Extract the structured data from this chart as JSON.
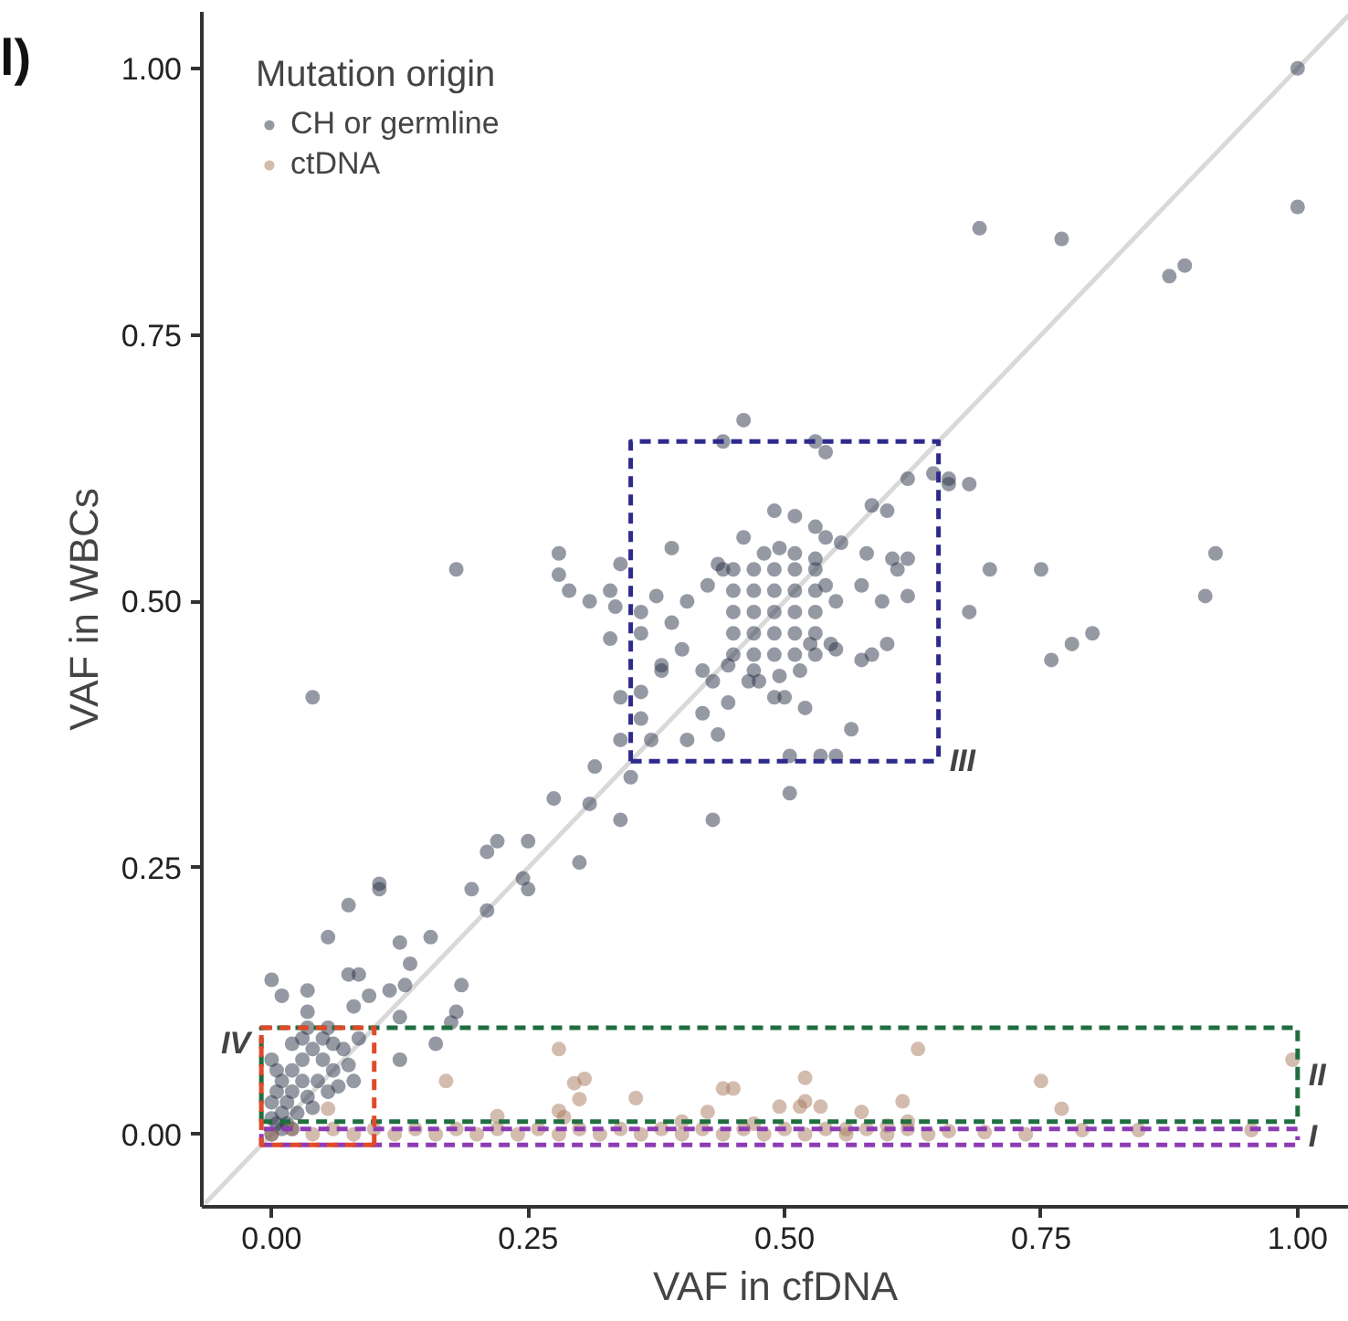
{
  "chart_data": {
    "type": "scatter",
    "xlabel": "VAF in cfDNA",
    "ylabel": "VAF in WBCs",
    "legend_title": "Mutation origin",
    "legend": "top left",
    "grid": false,
    "marker": "circle",
    "xlim": [
      -0.068,
      1.05
    ],
    "ylim": [
      -0.068,
      1.053
    ],
    "xticks": [
      {
        "value": 0,
        "label": "0.00"
      },
      {
        "value": 0.25,
        "label": "0.25"
      },
      {
        "value": 0.5,
        "label": "0.50"
      },
      {
        "value": 0.75,
        "label": "0.75"
      },
      {
        "value": 1,
        "label": "1.00"
      }
    ],
    "yticks": [
      {
        "value": 0,
        "label": "0.00"
      },
      {
        "value": 0.25,
        "label": "0.25"
      },
      {
        "value": 0.5,
        "label": "0.50"
      },
      {
        "value": 0.75,
        "label": "0.75"
      },
      {
        "value": 1,
        "label": "1.00"
      }
    ],
    "annotations": [
      "l)"
    ],
    "series": [
      {
        "type": "line",
        "marker": "none",
        "color": "#d9d9d9",
        "line_style": "solid",
        "x": [
          -0.065,
          1.05
        ],
        "values": [
          -0.065,
          1.05
        ]
      },
      {
        "name": "CH or germline",
        "color": "#2b3447",
        "x": [
          1.0,
          1.0,
          0.69,
          0.77,
          0.875,
          0.89,
          0.66,
          0.68,
          0.7,
          0.75,
          0.76,
          0.78,
          0.8,
          0.91,
          0.92,
          0.46,
          0.44,
          0.53,
          0.54,
          0.62,
          0.645,
          0.66,
          0.585,
          0.6,
          0.49,
          0.51,
          0.53,
          0.54,
          0.46,
          0.39,
          0.28,
          0.28,
          0.29,
          0.31,
          0.33,
          0.34,
          0.335,
          0.18,
          0.04,
          0.36,
          0.36,
          0.33,
          0.555,
          0.58,
          0.605,
          0.62,
          0.61,
          0.62,
          0.68,
          0.595,
          0.575,
          0.6,
          0.585,
          0.575,
          0.55,
          0.565,
          0.52,
          0.49,
          0.5,
          0.505,
          0.535,
          0.55,
          0.505,
          0.43,
          0.34,
          0.275,
          0.31,
          0.315,
          0.35,
          0.34,
          0.37,
          0.405,
          0.435,
          0.42,
          0.445,
          0.36,
          0.36,
          0.34,
          0.38,
          0.38,
          0.4,
          0.42,
          0.43,
          0.445,
          0.465,
          0.475,
          0.375,
          0.39,
          0.405,
          0.425,
          0.435,
          0.44,
          0.48,
          0.495,
          0.51,
          0.53,
          0.54,
          0.55,
          0.545,
          0.525,
          0.515,
          0.495,
          0.47,
          0.45,
          0.47,
          0.49,
          0.51,
          0.53,
          0.45,
          0.47,
          0.49,
          0.51,
          0.53,
          0.45,
          0.47,
          0.49,
          0.51,
          0.53,
          0.45,
          0.47,
          0.49,
          0.51,
          0.53,
          0.45,
          0.47,
          0.49,
          0.51,
          0.53,
          0.0,
          0.01,
          0.035,
          0.035,
          0.055,
          0.075,
          0.075,
          0.085,
          0.08,
          0.095,
          0.105,
          0.105,
          0.125,
          0.135,
          0.115,
          0.13,
          0.155,
          0.185,
          0.18,
          0.175,
          0.195,
          0.21,
          0.21,
          0.22,
          0.25,
          0.245,
          0.25,
          0.3,
          0.125,
          0.125,
          0.16,
          0.0,
          0.005,
          0.01,
          0.015,
          0.02,
          0.01,
          0.005,
          0.0,
          0.02,
          0.03,
          0.03,
          0.04,
          0.05,
          0.06,
          0.07,
          0.075,
          0.08,
          0.06,
          0.05,
          0.045,
          0.035,
          0.025,
          0.015,
          0.0,
          0.0,
          0.03,
          0.02,
          0.065,
          0.055,
          0.04,
          0.01,
          0.02,
          0.005,
          0.035,
          0.055,
          0.085
        ],
        "values": [
          1.0,
          0.87,
          0.85,
          0.84,
          0.805,
          0.815,
          0.61,
          0.61,
          0.53,
          0.53,
          0.445,
          0.46,
          0.47,
          0.505,
          0.545,
          0.67,
          0.65,
          0.65,
          0.64,
          0.615,
          0.62,
          0.615,
          0.59,
          0.585,
          0.585,
          0.58,
          0.57,
          0.56,
          0.56,
          0.55,
          0.545,
          0.525,
          0.51,
          0.5,
          0.51,
          0.535,
          0.495,
          0.53,
          0.41,
          0.49,
          0.47,
          0.465,
          0.555,
          0.545,
          0.54,
          0.54,
          0.53,
          0.505,
          0.49,
          0.5,
          0.515,
          0.46,
          0.45,
          0.445,
          0.455,
          0.38,
          0.4,
          0.41,
          0.41,
          0.355,
          0.355,
          0.355,
          0.32,
          0.295,
          0.295,
          0.315,
          0.31,
          0.345,
          0.335,
          0.37,
          0.37,
          0.37,
          0.375,
          0.395,
          0.405,
          0.39,
          0.415,
          0.41,
          0.44,
          0.435,
          0.455,
          0.435,
          0.425,
          0.44,
          0.425,
          0.425,
          0.505,
          0.48,
          0.5,
          0.515,
          0.535,
          0.53,
          0.545,
          0.55,
          0.545,
          0.54,
          0.515,
          0.5,
          0.46,
          0.46,
          0.435,
          0.43,
          0.435,
          0.45,
          0.45,
          0.45,
          0.45,
          0.45,
          0.47,
          0.47,
          0.47,
          0.47,
          0.47,
          0.49,
          0.49,
          0.49,
          0.49,
          0.49,
          0.51,
          0.51,
          0.51,
          0.51,
          0.51,
          0.53,
          0.53,
          0.53,
          0.53,
          0.53,
          0.145,
          0.13,
          0.135,
          0.115,
          0.185,
          0.215,
          0.15,
          0.15,
          0.12,
          0.13,
          0.235,
          0.23,
          0.18,
          0.16,
          0.135,
          0.14,
          0.185,
          0.14,
          0.115,
          0.105,
          0.23,
          0.21,
          0.265,
          0.275,
          0.275,
          0.24,
          0.23,
          0.255,
          0.11,
          0.07,
          0.085,
          0.0,
          0.01,
          0.02,
          0.03,
          0.04,
          0.05,
          0.06,
          0.07,
          0.06,
          0.05,
          0.07,
          0.08,
          0.09,
          0.085,
          0.08,
          0.065,
          0.05,
          0.06,
          0.07,
          0.05,
          0.035,
          0.02,
          0.01,
          0.03,
          0.015,
          0.09,
          0.085,
          0.045,
          0.04,
          0.025,
          0.005,
          0.005,
          0.04,
          0.1,
          0.1,
          0.09
        ]
      },
      {
        "name": "ctDNA",
        "color": "#a87a5e",
        "x": [
          0.28,
          0.63,
          0.995,
          0.17,
          0.295,
          0.305,
          0.3,
          0.355,
          0.44,
          0.45,
          0.52,
          0.75,
          0.77,
          0.615,
          0.515,
          0.52,
          0.535,
          0.495,
          0.575,
          0.425,
          0.22,
          0.055,
          0.28,
          0.285,
          0.695,
          0.845,
          0.955,
          0.79,
          0.735,
          0.66,
          0.6,
          0.56,
          0.47,
          0.4,
          0.62,
          0.0,
          0.02,
          0.04,
          0.06,
          0.08,
          0.1,
          0.12,
          0.14,
          0.16,
          0.18,
          0.2,
          0.22,
          0.24,
          0.26,
          0.28,
          0.3,
          0.32,
          0.34,
          0.36,
          0.38,
          0.4,
          0.42,
          0.44,
          0.46,
          0.48,
          0.5,
          0.52,
          0.54,
          0.56,
          0.58,
          0.6,
          0.62,
          0.64
        ],
        "values": [
          0.08,
          0.08,
          0.07,
          0.05,
          0.048,
          0.052,
          0.033,
          0.034,
          0.043,
          0.043,
          0.053,
          0.05,
          0.024,
          0.031,
          0.026,
          0.031,
          0.026,
          0.026,
          0.021,
          0.021,
          0.017,
          0.024,
          0.022,
          0.016,
          0.002,
          0.004,
          0.004,
          0.004,
          0.0,
          0.003,
          0.008,
          0.005,
          0.01,
          0.012,
          0.012,
          0.0,
          0.005,
          0.0,
          0.005,
          0.0,
          0.005,
          0.0,
          0.005,
          0.0,
          0.005,
          0.0,
          0.005,
          0.0,
          0.005,
          0.0,
          0.005,
          0.0,
          0.005,
          0.0,
          0.005,
          0.0,
          0.005,
          0.0,
          0.005,
          0.0,
          0.005,
          0.0,
          0.005,
          0.0,
          0.005,
          0.0,
          0.005,
          0.0
        ]
      },
      {
        "type": "line",
        "marker": "none",
        "name": "I",
        "color": "#8e3bb4",
        "line_style": "dashed",
        "x": [
          -0.01,
          1.0,
          1.0,
          null,
          -0.01,
          -0.01,
          1.0,
          1.0
        ],
        "values": [
          -0.01,
          -0.01,
          -0.002,
          null,
          -0.01,
          0.005,
          0.005,
          -0.002
        ]
      },
      {
        "type": "line",
        "marker": "none",
        "name": "II",
        "color": "#1f6e3f",
        "line_style": "dashed",
        "x": [
          -0.01,
          1.0,
          1.0,
          null,
          -0.01,
          -0.01,
          1.0,
          1.0
        ],
        "values": [
          0.012,
          0.012,
          0.055,
          null,
          0.012,
          0.1,
          0.1,
          0.055
        ]
      },
      {
        "type": "line",
        "marker": "none",
        "name": "IV",
        "color": "#e04a2a",
        "line_style": "dashed",
        "x": [
          0.1,
          -0.01,
          -0.01,
          null,
          0.1,
          0.1,
          -0.01,
          -0.01
        ],
        "values": [
          -0.01,
          -0.01,
          0.085,
          null,
          -0.01,
          0.1,
          0.1,
          0.085
        ]
      },
      {
        "type": "line",
        "marker": "none",
        "name": "III",
        "color": "#2e2a8c",
        "line_style": "dashed",
        "x": [
          0.35,
          0.65,
          0.65,
          null,
          0.35,
          0.35,
          0.65,
          0.65
        ],
        "values": [
          0.35,
          0.35,
          0.35,
          null,
          0.35,
          0.65,
          0.65,
          0.35
        ]
      }
    ]
  }
}
